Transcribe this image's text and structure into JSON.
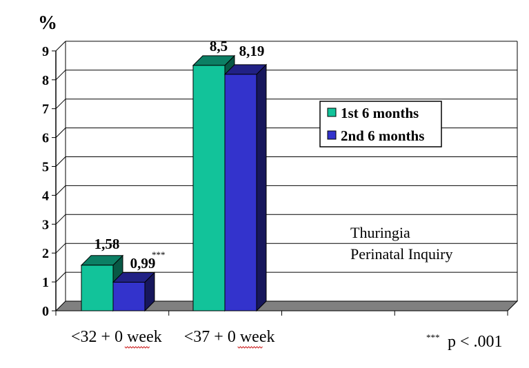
{
  "chart_data": {
    "type": "bar",
    "unit_label": "%",
    "categories": [
      "<32 + 0 week",
      "<37 + 0 week"
    ],
    "series": [
      {
        "name": "1st 6 months",
        "values": [
          1.58,
          8.5
        ],
        "labels": [
          "1,58",
          "8,5"
        ],
        "color": "#12c39a"
      },
      {
        "name": "2nd 6 months",
        "values": [
          0.99,
          8.19
        ],
        "labels": [
          "0,99",
          "8,19"
        ],
        "color": "#3333cc"
      }
    ],
    "significance_marker": "***",
    "ylim": [
      0,
      9
    ],
    "yticks": [
      "0",
      "1",
      "2",
      "3",
      "4",
      "5",
      "6",
      "7",
      "8",
      "9"
    ],
    "grid": true,
    "legend_position": "right",
    "annotation_lines": [
      "Thuringia",
      "Perinatal Inquiry"
    ],
    "footnote_marker": "***",
    "footnote_text": "p < .001"
  }
}
